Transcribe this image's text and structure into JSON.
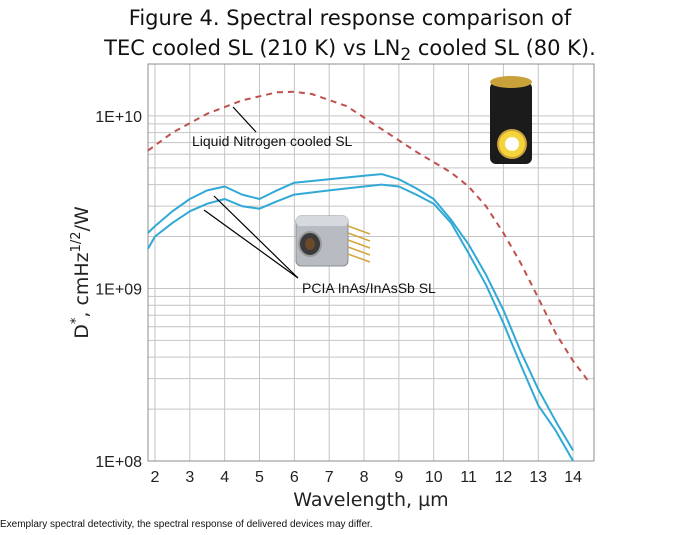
{
  "title_parts": {
    "line1": "Figure 4. Spectral response comparison of",
    "line2_pre": "TEC cooled SL (210 K) vs LN",
    "line2_sub": "2",
    "line2_post": " cooled SL (80 K)."
  },
  "footnote": "Exemplary spectral detectivity, the spectral response of delivered devices may differ.",
  "chart_data": {
    "type": "line",
    "title": "Figure 4. Spectral response comparison of TEC cooled SL (210 K) vs LN2 cooled SL (80 K).",
    "xlabel": "Wavelength, µm",
    "ylabel_parts": {
      "base": "D",
      "sup": "*",
      "mid": ", cmHz",
      "sup2": "1/2",
      "end": "/W"
    },
    "x_scale": "linear",
    "y_scale": "log",
    "xlim": [
      1.8,
      14.6
    ],
    "ylim": [
      100000000.0,
      20000000000.0
    ],
    "x_ticks": [
      2,
      3,
      4,
      5,
      6,
      7,
      8,
      9,
      10,
      11,
      12,
      13,
      14
    ],
    "x_tick_labels": [
      "2",
      "3",
      "4",
      "5",
      "6",
      "7",
      "8",
      "9",
      "10",
      "11",
      "12",
      "13",
      "14"
    ],
    "y_ticks": [
      100000000.0,
      1000000000.0,
      10000000000.0
    ],
    "y_tick_labels": [
      "1E+08",
      "1E+09",
      "1E+10"
    ],
    "grid": true,
    "annotations": [
      {
        "text": "Liquid Nitrogen cooled SL",
        "series": "lnsl"
      },
      {
        "text": "PCIA InAs/InAsSb SL",
        "series": "pcia"
      }
    ],
    "colors": {
      "ln2": "#c0504d",
      "pcia": "#31a9d6",
      "grid": "#c4c4c4"
    },
    "series": [
      {
        "id": "ln2",
        "style": "dashed",
        "x": [
          1.8,
          2.5,
          3.5,
          4.5,
          5.5,
          6.0,
          6.5,
          7.5,
          8.5,
          9.5,
          10.5,
          11.0,
          11.5,
          12.0,
          12.5,
          13.0,
          13.5,
          14.0,
          14.5
        ],
        "y": [
          6300000000.0,
          8000000000.0,
          10300000000.0,
          12300000000.0,
          13700000000.0,
          13800000000.0,
          13400000000.0,
          11400000000.0,
          8400000000.0,
          6200000000.0,
          4700000000.0,
          3900000000.0,
          3000000000.0,
          2100000000.0,
          1400000000.0,
          880000000.0,
          550000000.0,
          380000000.0,
          280000000.0
        ]
      },
      {
        "id": "pcia-upper",
        "style": "solid",
        "x": [
          1.8,
          2.0,
          2.5,
          3.0,
          3.5,
          4.0,
          4.5,
          5.0,
          5.5,
          6.0,
          7.0,
          8.0,
          8.5,
          9.0,
          9.5,
          10.0,
          10.5,
          11.0,
          11.5,
          12.0,
          12.5,
          13.0,
          13.5,
          14.0
        ],
        "y": [
          2100000000.0,
          2300000000.0,
          2800000000.0,
          3300000000.0,
          3700000000.0,
          3900000000.0,
          3500000000.0,
          3300000000.0,
          3700000000.0,
          4100000000.0,
          4300000000.0,
          4500000000.0,
          4600000000.0,
          4300000000.0,
          3800000000.0,
          3300000000.0,
          2500000000.0,
          1800000000.0,
          1200000000.0,
          750000000.0,
          430000000.0,
          260000000.0,
          170000000.0,
          115000000.0
        ]
      },
      {
        "id": "pcia-lower",
        "style": "solid",
        "x": [
          1.8,
          2.0,
          2.5,
          3.0,
          3.5,
          4.0,
          4.5,
          5.0,
          5.5,
          6.0,
          7.0,
          8.0,
          8.5,
          9.0,
          9.5,
          10.0,
          10.5,
          11.0,
          11.5,
          12.0,
          12.5,
          13.0,
          13.5,
          14.0
        ],
        "y": [
          1700000000.0,
          2000000000.0,
          2400000000.0,
          2800000000.0,
          3100000000.0,
          3300000000.0,
          3000000000.0,
          2900000000.0,
          3200000000.0,
          3500000000.0,
          3700000000.0,
          3900000000.0,
          4000000000.0,
          3900000000.0,
          3500000000.0,
          3100000000.0,
          2400000000.0,
          1600000000.0,
          1050000000.0,
          630000000.0,
          360000000.0,
          210000000.0,
          150000000.0,
          100000000.0
        ]
      }
    ]
  }
}
